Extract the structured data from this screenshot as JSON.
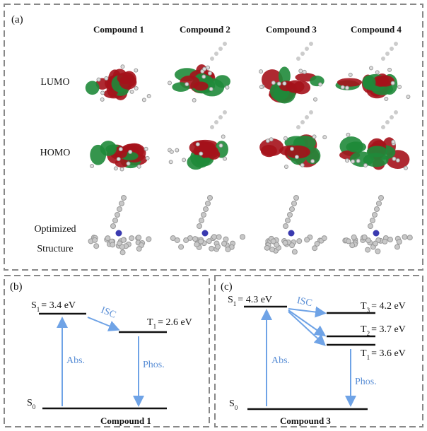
{
  "panel_a": {
    "label": "(a)",
    "columns": [
      "Compound 1",
      "Compound 2",
      "Compound 3",
      "Compound 4"
    ],
    "rows": [
      [
        "LUMO"
      ],
      [
        "HOMO"
      ],
      [
        "Optimized",
        "Structure"
      ]
    ]
  },
  "panel_b": {
    "label": "(b)",
    "levels": [
      {
        "symbol": "S",
        "sub": "1",
        "energy": "= 3.4 eV"
      },
      {
        "symbol": "T",
        "sub": "1",
        "energy": "= 2.6 eV"
      },
      {
        "symbol": "S",
        "sub": "0"
      }
    ],
    "transitions": [
      "ISC",
      "Abs.",
      "Phos."
    ],
    "compound": "Compound 1"
  },
  "panel_c": {
    "label": "(c)",
    "levels": [
      {
        "symbol": "S",
        "sub": "1",
        "energy": "= 4.3 eV"
      },
      {
        "symbol": "T",
        "sub": "3",
        "energy": "= 4.2 eV"
      },
      {
        "symbol": "T",
        "sub": "2",
        "energy": "= 3.7 eV"
      },
      {
        "symbol": "T",
        "sub": "1",
        "energy": "= 3.6 eV"
      },
      {
        "symbol": "S",
        "sub": "0"
      }
    ],
    "transitions": [
      "ISC",
      "Abs.",
      "Phos."
    ],
    "compound": "Compound 3"
  }
}
